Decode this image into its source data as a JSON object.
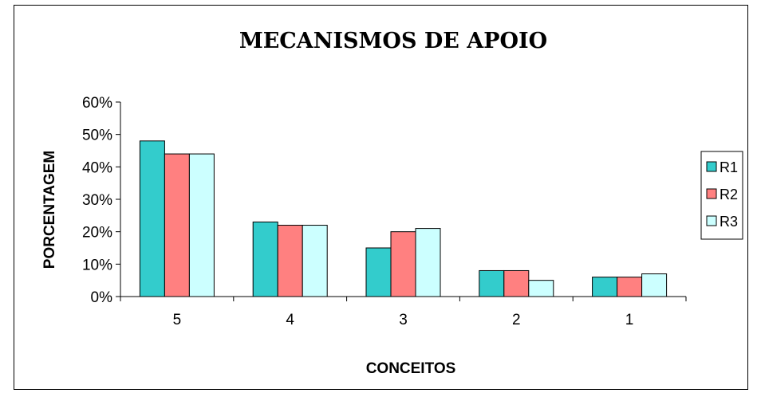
{
  "chart_data": {
    "type": "bar",
    "title": "MECANISMOS DE APOIO",
    "xlabel": "CONCEITOS",
    "ylabel": "PORCENTAGEM",
    "categories": [
      "5",
      "4",
      "3",
      "2",
      "1"
    ],
    "series": [
      {
        "name": "R1",
        "color": "#33CCCC",
        "values": [
          48,
          23,
          15,
          8,
          6
        ]
      },
      {
        "name": "R2",
        "color": "#FF8080",
        "values": [
          44,
          22,
          20,
          8,
          6
        ]
      },
      {
        "name": "R3",
        "color": "#CCFFFF",
        "values": [
          44,
          22,
          21,
          5,
          7
        ]
      }
    ],
    "ylim": [
      0,
      60
    ],
    "yticks": [
      "0%",
      "10%",
      "20%",
      "30%",
      "40%",
      "50%",
      "60%"
    ],
    "grid": false,
    "legend_position": "right"
  }
}
